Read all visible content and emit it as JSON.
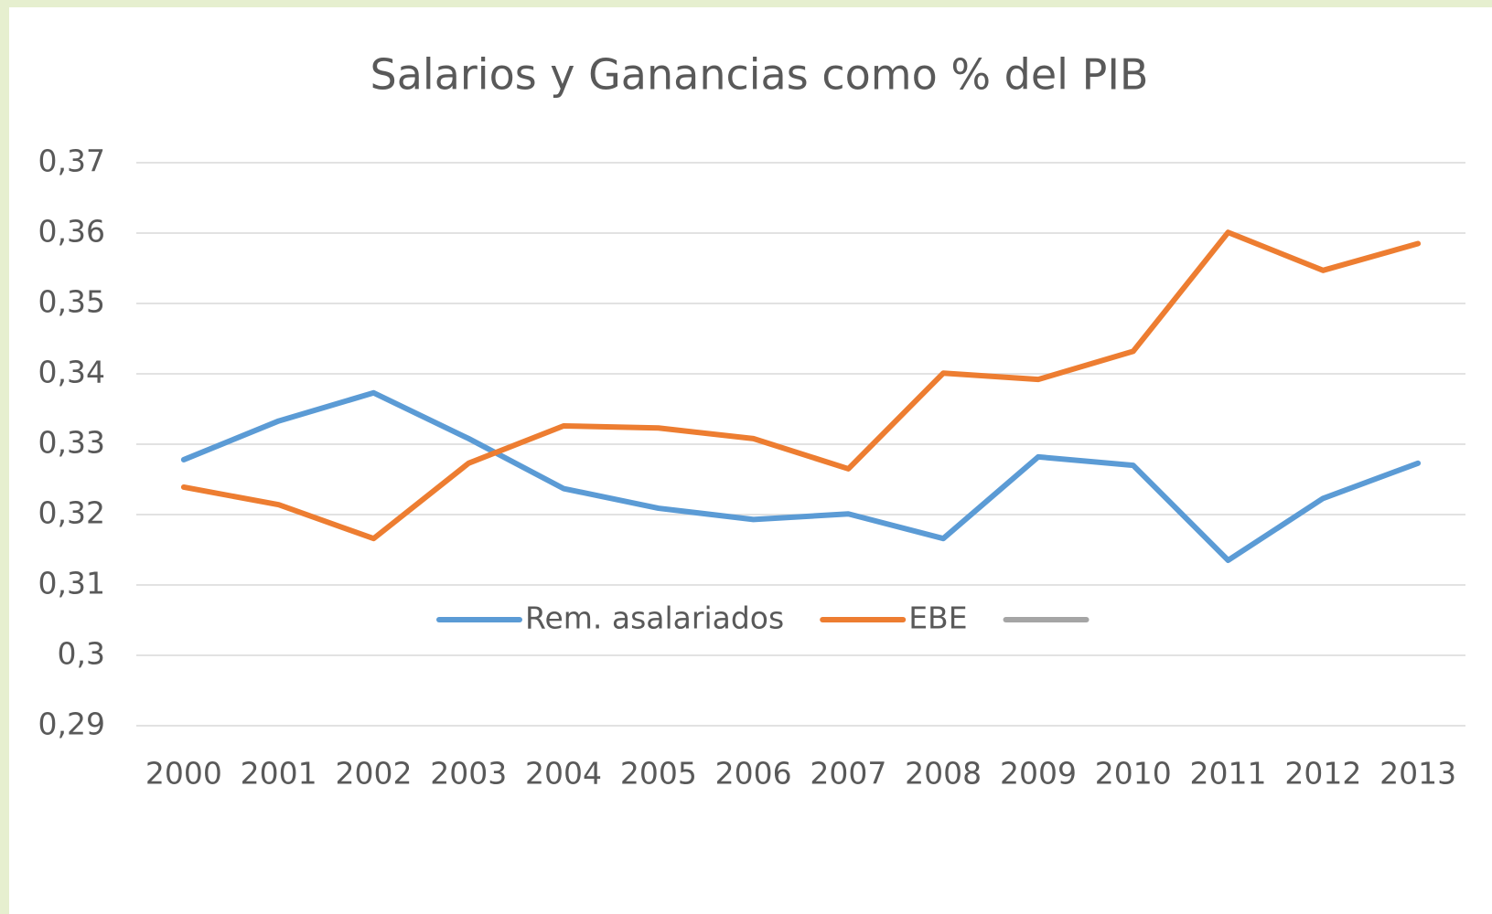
{
  "chart_data": {
    "type": "line",
    "title": "Salarios y Ganancias como % del PIB",
    "categories": [
      "2000",
      "2001",
      "2002",
      "2003",
      "2004",
      "2005",
      "2006",
      "2007",
      "2008",
      "2009",
      "2010",
      "2011",
      "2012",
      "2013"
    ],
    "series": [
      {
        "name": "Rem. asalariados",
        "color": "#5b9bd5",
        "values": [
          0.3278,
          0.3333,
          0.3373,
          0.3308,
          0.3237,
          0.3209,
          0.3193,
          0.3201,
          0.3166,
          0.3282,
          0.327,
          0.3135,
          0.3223,
          0.3273
        ]
      },
      {
        "name": "EBE",
        "color": "#ed7d31",
        "values": [
          0.3239,
          0.3214,
          0.3166,
          0.3273,
          0.3326,
          0.3323,
          0.3308,
          0.3265,
          0.3401,
          0.3392,
          0.3432,
          0.3601,
          0.3547,
          0.3585
        ]
      },
      {
        "color": "#a5a5a5",
        "values": [
          null,
          null,
          null,
          null,
          null,
          null,
          null,
          null,
          null,
          null,
          null,
          null,
          null,
          null
        ]
      }
    ],
    "ylim": [
      0.29,
      0.37
    ],
    "yticks": [
      {
        "value": 0.29,
        "label": "0,29"
      },
      {
        "value": 0.3,
        "label": "0,3"
      },
      {
        "value": 0.31,
        "label": "0,31"
      },
      {
        "value": 0.32,
        "label": "0,32"
      },
      {
        "value": 0.33,
        "label": "0,33"
      },
      {
        "value": 0.34,
        "label": "0,34"
      },
      {
        "value": 0.35,
        "label": "0,35"
      },
      {
        "value": 0.36,
        "label": "0,36"
      },
      {
        "value": 0.37,
        "label": "0,37"
      }
    ],
    "grid": true,
    "legend": "inside"
  }
}
